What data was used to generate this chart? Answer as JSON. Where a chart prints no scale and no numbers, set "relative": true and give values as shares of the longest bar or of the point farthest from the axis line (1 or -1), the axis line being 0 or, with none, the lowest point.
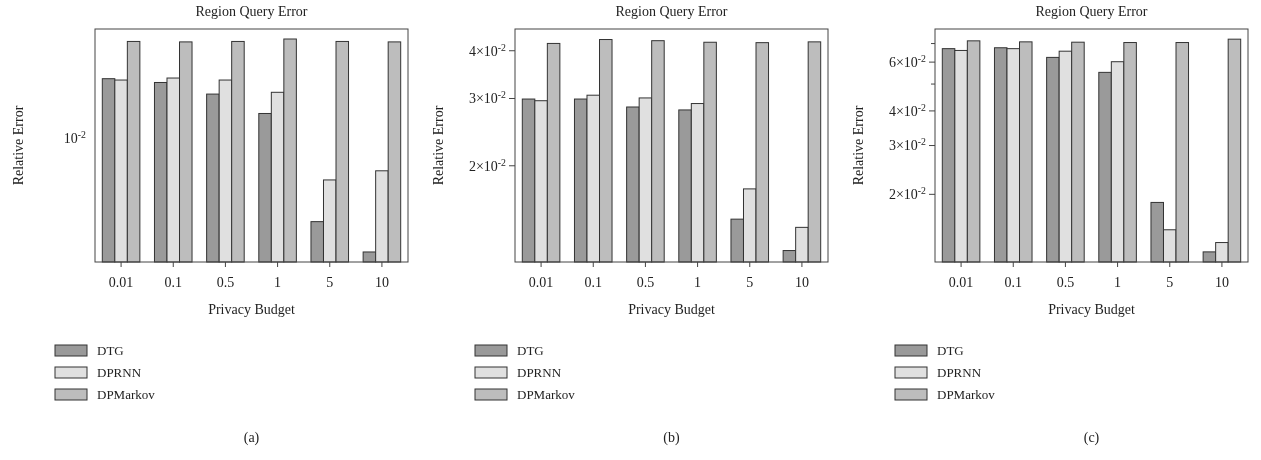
{
  "chart_data": [
    {
      "type": "bar",
      "title": "Region Query Error",
      "xlabel": "Privacy Budget",
      "ylabel": "Relative Error",
      "categories": [
        "0.01",
        "0.1",
        "0.5",
        "1",
        "5",
        "10"
      ],
      "relative": true,
      "grid": false,
      "legend": "bottom left",
      "annotations": [
        "10$^{-2}$",
        "(a)"
      ],
      "series": [
        {
          "name": "DTG",
          "color": "#9a9a9a",
          "values": [
            0.822,
            0.805,
            0.753,
            0.666,
            0.181,
            0.045
          ]
        },
        {
          "name": "DPRNN",
          "color": "#e0e0e0",
          "values": [
            0.816,
            0.825,
            0.816,
            0.761,
            0.368,
            0.409
          ]
        },
        {
          "name": "DPMarkov",
          "color": "#bdbdbd",
          "values": [
            0.989,
            0.987,
            0.989,
            1,
            0.989,
            0.987
          ]
        }
      ]
    },
    {
      "type": "bar",
      "title": "Region Query Error",
      "xlabel": "Privacy Budget",
      "ylabel": "Relative Error",
      "categories": [
        "0.01",
        "0.1",
        "0.5",
        "1",
        "5",
        "10"
      ],
      "log": "y",
      "ylim": [
        0.0112,
        0.0456
      ],
      "yticks": [
        {
          "value": 0.02,
          "label": "2×10$^{-2}$"
        },
        {
          "value": 0.03,
          "label": "3×10$^{-2}$"
        },
        {
          "value": 0.04,
          "label": "4×10$^{-2}$"
        }
      ],
      "grid": false,
      "legend": "bottom left",
      "annotations": [
        "(b)"
      ],
      "series": [
        {
          "name": "DTG",
          "color": "#9a9a9a",
          "values": [
            0.0299,
            0.0299,
            0.0285,
            0.028,
            0.0145,
            0.012
          ]
        },
        {
          "name": "DPRNN",
          "color": "#e0e0e0",
          "values": [
            0.0296,
            0.0306,
            0.0301,
            0.0291,
            0.0174,
            0.0138
          ]
        },
        {
          "name": "DPMarkov",
          "color": "#bdbdbd",
          "values": [
            0.0418,
            0.0428,
            0.0425,
            0.0421,
            0.042,
            0.0422
          ]
        }
      ]
    },
    {
      "type": "bar",
      "title": "Region Query Error",
      "xlabel": "Privacy Budget",
      "ylabel": "Relative Error",
      "categories": [
        "0.01",
        "0.1",
        "0.5",
        "1",
        "5",
        "10"
      ],
      "log": "y",
      "ylim": [
        0.0114,
        0.079
      ],
      "yticks": [
        {
          "value": 0.02,
          "label": "2×10$^{-2}$"
        },
        {
          "value": 0.03,
          "label": "3×10$^{-2}$"
        },
        {
          "value": 0.04,
          "label": "4×10$^{-2}$"
        },
        {
          "value": 0.05,
          "label": null
        },
        {
          "value": 0.06,
          "label": "6×10$^{-2}$"
        },
        {
          "value": 0.07,
          "label": null
        }
      ],
      "grid": false,
      "legend": "bottom left",
      "annotations": [
        "(c)"
      ],
      "series": [
        {
          "name": "DTG",
          "color": "#9a9a9a",
          "values": [
            0.0671,
            0.0676,
            0.0624,
            0.0551,
            0.0187,
            0.0124
          ]
        },
        {
          "name": "DPRNN",
          "color": "#e0e0e0",
          "values": [
            0.0661,
            0.0671,
            0.0657,
            0.0602,
            0.0149,
            0.0134
          ]
        },
        {
          "name": "DPMarkov",
          "color": "#bdbdbd",
          "values": [
            0.0716,
            0.071,
            0.0708,
            0.0706,
            0.0706,
            0.0726
          ]
        }
      ]
    }
  ]
}
